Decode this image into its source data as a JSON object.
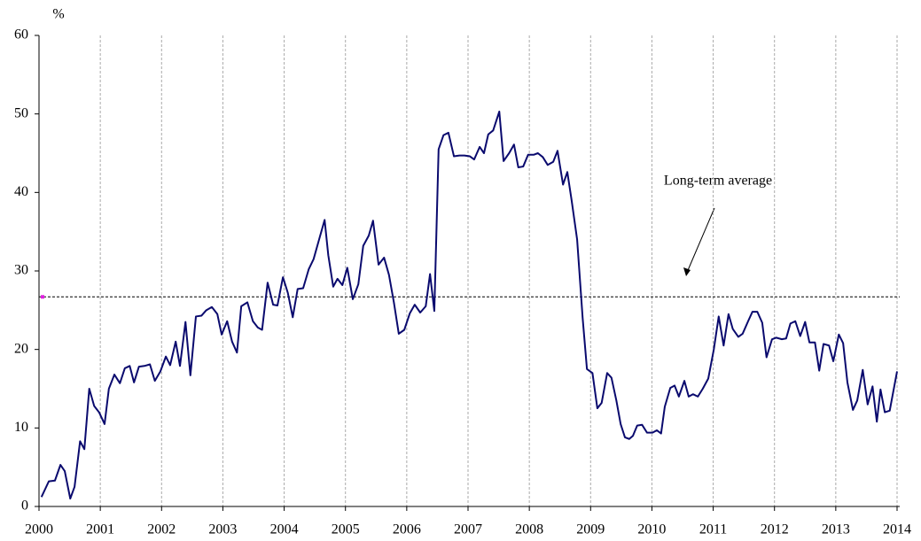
{
  "chart_data": {
    "type": "line",
    "y_label": "%",
    "xlim": [
      2000,
      2014
    ],
    "xticks": [
      2000,
      2001,
      2002,
      2003,
      2004,
      2005,
      2006,
      2007,
      2008,
      2009,
      2010,
      2011,
      2012,
      2013,
      2014
    ],
    "ylim": [
      0,
      60
    ],
    "yticks": [
      0,
      10,
      20,
      30,
      40,
      50,
      60
    ],
    "grid": true,
    "reference_line": {
      "value": 26.7,
      "label": "Long-term average",
      "color": "#000000"
    },
    "x": [
      2000.04,
      2000.16,
      2000.26,
      2000.35,
      2000.42,
      2000.51,
      2000.58,
      2000.67,
      2000.74,
      2000.82,
      2000.9,
      2000.98,
      2001.07,
      2001.14,
      2001.23,
      2001.32,
      2001.4,
      2001.48,
      2001.55,
      2001.63,
      2001.72,
      2001.81,
      2001.89,
      2001.98,
      2002.07,
      2002.14,
      2002.23,
      2002.3,
      2002.39,
      2002.47,
      2002.56,
      2002.65,
      2002.73,
      2002.82,
      2002.91,
      2002.98,
      2003.07,
      2003.15,
      2003.23,
      2003.3,
      2003.4,
      2003.49,
      2003.57,
      2003.64,
      2003.73,
      2003.82,
      2003.89,
      2003.98,
      2004.06,
      2004.14,
      2004.22,
      2004.31,
      2004.4,
      2004.48,
      2004.57,
      2004.66,
      2004.72,
      2004.8,
      2004.87,
      2004.95,
      2005.03,
      2005.12,
      2005.21,
      2005.29,
      2005.38,
      2005.45,
      2005.54,
      2005.63,
      2005.71,
      2005.79,
      2005.87,
      2005.96,
      2006.05,
      2006.13,
      2006.22,
      2006.31,
      2006.38,
      2006.45,
      2006.52,
      2006.6,
      2006.68,
      2006.77,
      2006.86,
      2006.94,
      2007.03,
      2007.1,
      2007.19,
      2007.26,
      2007.33,
      2007.41,
      2007.51,
      2007.58,
      2007.67,
      2007.75,
      2007.82,
      2007.9,
      2007.98,
      2008.07,
      2008.14,
      2008.22,
      2008.3,
      2008.39,
      2008.46,
      2008.55,
      2008.62,
      2008.69,
      2008.78,
      2008.87,
      2008.94,
      2009.03,
      2009.11,
      2009.18,
      2009.27,
      2009.34,
      2009.42,
      2009.49,
      2009.56,
      2009.63,
      2009.69,
      2009.76,
      2009.84,
      2009.92,
      2010.01,
      2010.08,
      2010.15,
      2010.21,
      2010.3,
      2010.37,
      2010.44,
      2010.53,
      2010.6,
      2010.67,
      2010.75,
      2010.83,
      2010.92,
      2011.01,
      2011.09,
      2011.17,
      2011.25,
      2011.32,
      2011.41,
      2011.48,
      2011.57,
      2011.64,
      2011.72,
      2011.8,
      2011.87,
      2011.96,
      2012.03,
      2012.12,
      2012.19,
      2012.26,
      2012.34,
      2012.42,
      2012.5,
      2012.57,
      2012.66,
      2012.73,
      2012.8,
      2012.89,
      2012.96,
      2013.05,
      2013.12,
      2013.19,
      2013.28,
      2013.35,
      2013.44,
      2013.52,
      2013.6,
      2013.67,
      2013.73,
      2013.8,
      2013.88,
      2014.0
    ],
    "series": [
      {
        "color": "#0a0a6e",
        "values": [
          1.2,
          3.2,
          3.3,
          5.3,
          4.5,
          1.0,
          2.5,
          8.3,
          7.3,
          15.0,
          12.8,
          12.0,
          10.5,
          15.0,
          16.8,
          15.7,
          17.6,
          17.9,
          15.8,
          17.8,
          17.9,
          18.1,
          16.0,
          17.2,
          19.1,
          18.0,
          21.0,
          17.9,
          23.5,
          16.7,
          24.2,
          24.3,
          25.0,
          25.4,
          24.5,
          21.9,
          23.6,
          21.0,
          19.6,
          25.5,
          26.0,
          23.6,
          22.8,
          22.5,
          28.5,
          25.7,
          25.6,
          29.2,
          27.2,
          24.1,
          27.7,
          27.8,
          30.2,
          31.5,
          34.0,
          36.5,
          32.0,
          28.0,
          29.0,
          28.2,
          30.4,
          26.4,
          28.3,
          33.2,
          34.5,
          36.4,
          30.8,
          31.7,
          29.5,
          26.0,
          22.0,
          22.5,
          24.6,
          25.7,
          24.7,
          25.5,
          29.6,
          24.9,
          45.5,
          47.3,
          47.6,
          44.6,
          44.7,
          44.7,
          44.6,
          44.2,
          45.8,
          45.0,
          47.4,
          47.9,
          50.3,
          44.0,
          45.0,
          46.1,
          43.2,
          43.3,
          44.8,
          44.8,
          45.0,
          44.5,
          43.5,
          43.9,
          45.3,
          41.0,
          42.6,
          39.0,
          34.0,
          24.0,
          17.5,
          17.0,
          12.5,
          13.2,
          17.0,
          16.4,
          13.5,
          10.5,
          8.8,
          8.6,
          9.0,
          10.3,
          10.4,
          9.4,
          9.4,
          9.7,
          9.3,
          12.7,
          15.1,
          15.4,
          14.0,
          16.0,
          14.0,
          14.3,
          14.0,
          15.0,
          16.3,
          20.0,
          24.2,
          20.5,
          24.5,
          22.6,
          21.6,
          22.0,
          23.6,
          24.8,
          24.8,
          23.4,
          19.0,
          21.3,
          21.5,
          21.3,
          21.4,
          23.3,
          23.6,
          21.7,
          23.5,
          20.9,
          20.9,
          17.3,
          20.7,
          20.5,
          18.5,
          21.9,
          20.8,
          15.8,
          12.3,
          13.5,
          17.4,
          13.0,
          15.3,
          10.8,
          14.9,
          12.0,
          12.2,
          17.2
        ]
      }
    ]
  }
}
